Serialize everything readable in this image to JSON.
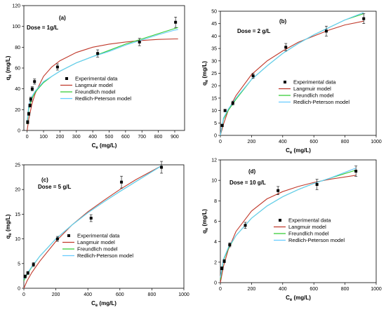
{
  "colors": {
    "experimental": "#000000",
    "langmuir": "#c0392b",
    "freundlich": "#33cc33",
    "redlich_peterson": "#66ccff"
  },
  "chart_data": [
    {
      "type": "scatter",
      "panel": "(a)",
      "dose_label": "Dose = 1g/L",
      "xlabel": "Ce (mg/L)",
      "ylabel": "qe (mg/g)",
      "xlim": [
        -20,
        960
      ],
      "ylim": [
        0,
        120
      ],
      "xticks": [
        0,
        100,
        200,
        300,
        400,
        500,
        600,
        700,
        800,
        900
      ],
      "yticks": [
        0,
        20,
        40,
        60,
        80,
        100,
        120
      ],
      "legend_position": "center",
      "series": [
        {
          "name": "Experimental data",
          "kind": "points",
          "x": [
            3,
            10,
            17,
            22,
            31,
            45,
            185,
            430,
            685,
            905
          ],
          "y": [
            8,
            16,
            24,
            30,
            40,
            47,
            61,
            74,
            85,
            104
          ],
          "err": [
            1.5,
            1.5,
            1.5,
            2,
            2,
            2.5,
            3,
            3.5,
            3.5,
            5
          ]
        },
        {
          "name": "Langmuir model",
          "kind": "line",
          "x": [
            0,
            10,
            30,
            50,
            100,
            150,
            200,
            300,
            400,
            500,
            600,
            700,
            800,
            900,
            920
          ],
          "y": [
            0,
            11,
            26,
            36,
            52,
            61,
            67,
            75,
            80,
            83,
            85,
            86.5,
            87.5,
            88,
            88
          ]
        },
        {
          "name": "Freundlich model",
          "kind": "line",
          "x": [
            0,
            10,
            30,
            50,
            100,
            150,
            200,
            300,
            400,
            500,
            600,
            700,
            800,
            900,
            920
          ],
          "y": [
            6,
            21,
            31,
            37,
            46,
            52,
            57,
            65,
            71,
            77,
            83,
            88,
            93,
            98,
            99
          ]
        },
        {
          "name": "Redlich-Peterson model",
          "kind": "line",
          "x": [
            0,
            10,
            30,
            50,
            100,
            150,
            200,
            300,
            400,
            500,
            600,
            700,
            800,
            900,
            920
          ],
          "y": [
            9,
            24,
            33,
            38,
            47,
            52,
            57,
            65,
            71,
            76,
            82,
            87,
            92,
            96.5,
            97
          ]
        }
      ]
    },
    {
      "type": "scatter",
      "panel": "(b)",
      "dose_label": "Dose = 2 g/L",
      "xlabel": "Ce (mg/L)",
      "ylabel": "qe (mg/g)",
      "xlim": [
        0,
        1000
      ],
      "ylim": [
        0,
        50
      ],
      "xticks": [
        0,
        200,
        400,
        600,
        800,
        1000
      ],
      "yticks": [
        0,
        5,
        10,
        15,
        20,
        25,
        30,
        35,
        40,
        45,
        50
      ],
      "legend_position": "center-right",
      "series": [
        {
          "name": "Experimental data",
          "kind": "points",
          "x": [
            12,
            30,
            80,
            210,
            420,
            680,
            920
          ],
          "y": [
            4,
            10,
            13,
            24,
            35.5,
            42,
            47
          ],
          "err": [
            0.5,
            0.5,
            0.8,
            1,
            1.5,
            2,
            2
          ]
        },
        {
          "name": "Langmuir model",
          "kind": "line",
          "x": [
            0,
            20,
            50,
            100,
            200,
            300,
            400,
            500,
            600,
            700,
            800,
            920
          ],
          "y": [
            0,
            4.5,
            10,
            16,
            24.5,
            30,
            34,
            37.5,
            40,
            42.5,
            44.5,
            46
          ]
        },
        {
          "name": "Freundlich model",
          "kind": "line",
          "x": [
            0,
            20,
            50,
            100,
            200,
            300,
            400,
            500,
            600,
            700,
            800,
            920
          ],
          "y": [
            0,
            6.5,
            10,
            14.5,
            22.5,
            28,
            33,
            37,
            40.5,
            43.5,
            46.5,
            49
          ]
        },
        {
          "name": "Redlich-Peterson model",
          "kind": "line",
          "x": [
            0,
            20,
            50,
            100,
            200,
            300,
            400,
            500,
            600,
            700,
            800,
            920
          ],
          "y": [
            0,
            7,
            10.5,
            15,
            22.5,
            28,
            33,
            37,
            40.5,
            43.5,
            46.5,
            49.5
          ]
        }
      ]
    },
    {
      "type": "scatter",
      "panel": "(c)",
      "dose_label": "Dose = 5 g/L",
      "xlabel": "Ce (mg/L)",
      "ylabel": "qe (mg/g)",
      "xlim": [
        0,
        1000
      ],
      "ylim": [
        0,
        25
      ],
      "xticks": [
        0,
        200,
        400,
        600,
        800,
        1000
      ],
      "yticks": [
        0,
        5,
        10,
        15,
        20,
        25
      ],
      "legend_position": "bottom-right",
      "series": [
        {
          "name": "Experimental data",
          "kind": "points",
          "x": [
            8,
            25,
            60,
            210,
            420,
            610,
            860
          ],
          "y": [
            2.4,
            3.1,
            4.8,
            10,
            14.2,
            21.5,
            24.5
          ],
          "err": [
            0.3,
            0.3,
            0.4,
            0.5,
            0.7,
            1.2,
            1.2
          ]
        },
        {
          "name": "Langmuir model",
          "kind": "line",
          "x": [
            0,
            20,
            50,
            100,
            200,
            300,
            400,
            500,
            600,
            700,
            860
          ],
          "y": [
            0,
            1.5,
            3.2,
            5.5,
            9.5,
            12.8,
            15.5,
            17.8,
            20,
            22,
            24.8
          ]
        },
        {
          "name": "Freundlich model",
          "kind": "line",
          "x": [
            0,
            20,
            50,
            100,
            200,
            300,
            400,
            500,
            600,
            700,
            860
          ],
          "y": [
            1.5,
            2.8,
            4.3,
            6.5,
            10,
            12.8,
            15.3,
            17.5,
            19.6,
            21.6,
            24.8
          ]
        },
        {
          "name": "Redlich-Peterson model",
          "kind": "line",
          "x": [
            0,
            20,
            50,
            100,
            200,
            300,
            400,
            500,
            600,
            700,
            860
          ],
          "y": [
            1.8,
            3,
            4.4,
            6.5,
            10,
            12.8,
            15.3,
            17.5,
            19.6,
            21.6,
            24.8
          ]
        }
      ]
    },
    {
      "type": "scatter",
      "panel": "(d)",
      "dose_label": "Dose = 10 g/L",
      "xlabel": "Ce (mg/L)",
      "ylabel": "qe (mg/g)",
      "xlim": [
        0,
        1000
      ],
      "ylim": [
        0,
        12
      ],
      "xticks": [
        0,
        200,
        400,
        600,
        800,
        1000
      ],
      "yticks": [
        0,
        2,
        4,
        6,
        8,
        10,
        12
      ],
      "legend_position": "bottom-right",
      "series": [
        {
          "name": "Experimental data",
          "kind": "points",
          "x": [
            10,
            25,
            60,
            160,
            370,
            620,
            870
          ],
          "y": [
            1.4,
            2.1,
            3.7,
            5.6,
            9,
            9.6,
            10.9
          ],
          "err": [
            0.15,
            0.15,
            0.2,
            0.3,
            0.4,
            0.5,
            0.5
          ]
        },
        {
          "name": "Langmuir model",
          "kind": "line",
          "x": [
            0,
            20,
            50,
            100,
            200,
            300,
            400,
            500,
            600,
            700,
            870
          ],
          "y": [
            0,
            1.6,
            3.2,
            5,
            7,
            8.2,
            8.9,
            9.4,
            9.8,
            10.1,
            10.5
          ]
        },
        {
          "name": "Freundlich model",
          "kind": "line",
          "x": [
            0,
            20,
            50,
            100,
            200,
            300,
            400,
            500,
            600,
            700,
            870
          ],
          "y": [
            0.3,
            2.2,
            3.3,
            4.6,
            6.3,
            7.5,
            8.4,
            9.1,
            9.7,
            10.2,
            11
          ]
        },
        {
          "name": "Redlich-Peterson model",
          "kind": "line",
          "x": [
            0,
            20,
            50,
            100,
            200,
            300,
            400,
            500,
            600,
            700,
            870
          ],
          "y": [
            0.5,
            2.3,
            3.4,
            4.6,
            6.3,
            7.5,
            8.4,
            9.1,
            9.7,
            10.2,
            11.2
          ]
        }
      ]
    }
  ]
}
